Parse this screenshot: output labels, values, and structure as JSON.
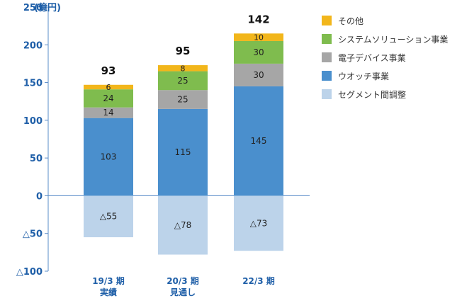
{
  "chart_data": {
    "type": "bar",
    "stacked": true,
    "categories": [
      [
        "19/3 期",
        "実績"
      ],
      [
        "20/3 期",
        "見通し"
      ],
      [
        "22/3 期"
      ]
    ],
    "y_axis": {
      "unit_label": "(億円)",
      "ylim": [
        -100,
        250
      ],
      "ticks": [
        {
          "value": 250,
          "label": "250"
        },
        {
          "value": 200,
          "label": "200"
        },
        {
          "value": 150,
          "label": "150"
        },
        {
          "value": 100,
          "label": "100"
        },
        {
          "value": 50,
          "label": "50"
        },
        {
          "value": 0,
          "label": "0"
        },
        {
          "value": -50,
          "label": "△50"
        },
        {
          "value": -100,
          "label": "△100"
        }
      ]
    },
    "series": [
      {
        "name": "ウオッチ事業",
        "color": "#4a8fcd",
        "values": [
          103,
          115,
          145
        ],
        "labels": [
          "103",
          "115",
          "145"
        ]
      },
      {
        "name": "電子デバイス事業",
        "color": "#a6a6a6",
        "values": [
          14,
          25,
          30
        ],
        "labels": [
          "14",
          "25",
          "30"
        ]
      },
      {
        "name": "システムソリューション事業",
        "color": "#7fbc4e",
        "values": [
          24,
          25,
          30
        ],
        "labels": [
          "24",
          "25",
          "30"
        ]
      },
      {
        "name": "その他",
        "color": "#f2b61b",
        "values": [
          6,
          8,
          10
        ],
        "labels": [
          "6",
          "8",
          "10"
        ]
      },
      {
        "name": "セグメント間調整",
        "color": "#bcd3ea",
        "values": [
          -55,
          -78,
          -73
        ],
        "labels": [
          "△55",
          "△78",
          "△73"
        ]
      }
    ],
    "totals": [
      "93",
      "95",
      "142"
    ],
    "legend": {
      "placement": "right",
      "order": [
        "その他",
        "システムソリューション事業",
        "電子デバイス事業",
        "ウオッチ事業",
        "セグメント間調整"
      ]
    },
    "grid": false
  }
}
